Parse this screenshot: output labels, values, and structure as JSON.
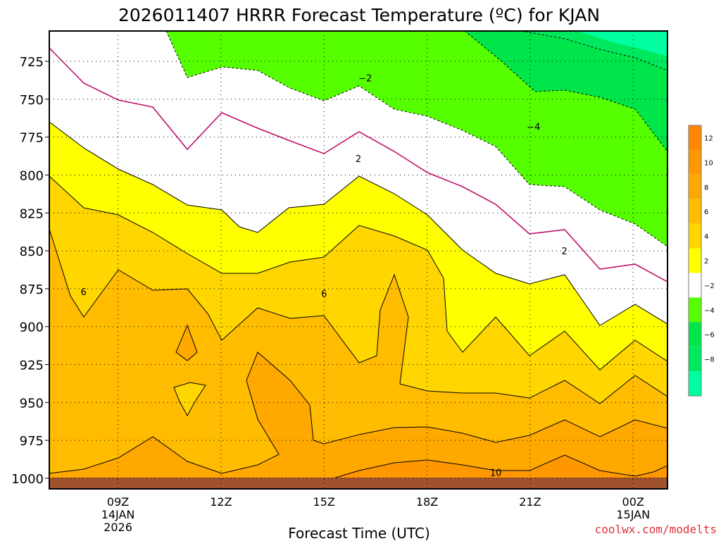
{
  "chart_data": {
    "type": "contour",
    "title": "2026011407 HRRR Forecast Temperature (ºC) for KJAN",
    "xlabel": "Forecast Time (UTC)",
    "ylabel": "",
    "credit": "coolwx.com/modelts",
    "y_axis": {
      "unit": "hPa",
      "orientation": "inverted",
      "range": [
        705,
        1007
      ],
      "ticks": [
        {
          "value": 725,
          "label": "725"
        },
        {
          "value": 750,
          "label": "750"
        },
        {
          "value": 775,
          "label": "775"
        },
        {
          "value": 800,
          "label": "800"
        },
        {
          "value": 825,
          "label": "825"
        },
        {
          "value": 850,
          "label": "850"
        },
        {
          "value": 875,
          "label": "875"
        },
        {
          "value": 900,
          "label": "900"
        },
        {
          "value": 925,
          "label": "925"
        },
        {
          "value": 950,
          "label": "950"
        },
        {
          "value": 975,
          "label": "975"
        },
        {
          "value": 1000,
          "label": "1000"
        }
      ]
    },
    "x_axis": {
      "unit": "hours after 2026011407",
      "range": [
        0,
        18
      ],
      "ticks": [
        {
          "value": 2,
          "label": "09Z",
          "date_line": "14JAN",
          "year_line": "2026"
        },
        {
          "value": 5,
          "label": "12Z"
        },
        {
          "value": 8,
          "label": "15Z"
        },
        {
          "value": 11,
          "label": "18Z"
        },
        {
          "value": 14,
          "label": "21Z"
        },
        {
          "value": 17,
          "label": "00Z",
          "date_line": "15JAN"
        }
      ]
    },
    "color_scale": [
      {
        "value": "12",
        "color": "#ff8800"
      },
      {
        "value": "10",
        "color": "#ff9800"
      },
      {
        "value": "8",
        "color": "#ffa800"
      },
      {
        "value": "6",
        "color": "#ffbc00"
      },
      {
        "value": "4",
        "color": "#ffd600"
      },
      {
        "value": "2",
        "color": "#ffff00"
      },
      {
        "value": "−2",
        "color": "#ffffff"
      },
      {
        "value": "−4",
        "color": "#55ff00"
      },
      {
        "value": "−6",
        "color": "#00e64a"
      },
      {
        "value": "−8",
        "color": "#00e85e"
      },
      {
        "value": "",
        "color": "#00ffa0"
      }
    ],
    "contour_labels": [
      {
        "text": "−2",
        "x": 9.2,
        "p": 736
      },
      {
        "text": "−4",
        "x": 14.1,
        "p": 768
      },
      {
        "text": "2",
        "x": 9.0,
        "p": 789
      },
      {
        "text": "2",
        "x": 15.0,
        "p": 850
      },
      {
        "text": "6",
        "x": 1.0,
        "p": 877
      },
      {
        "text": "6",
        "x": 8.0,
        "p": 878
      },
      {
        "text": "10",
        "x": 13.0,
        "p": 996
      }
    ],
    "surface_color": "#a0522d"
  }
}
